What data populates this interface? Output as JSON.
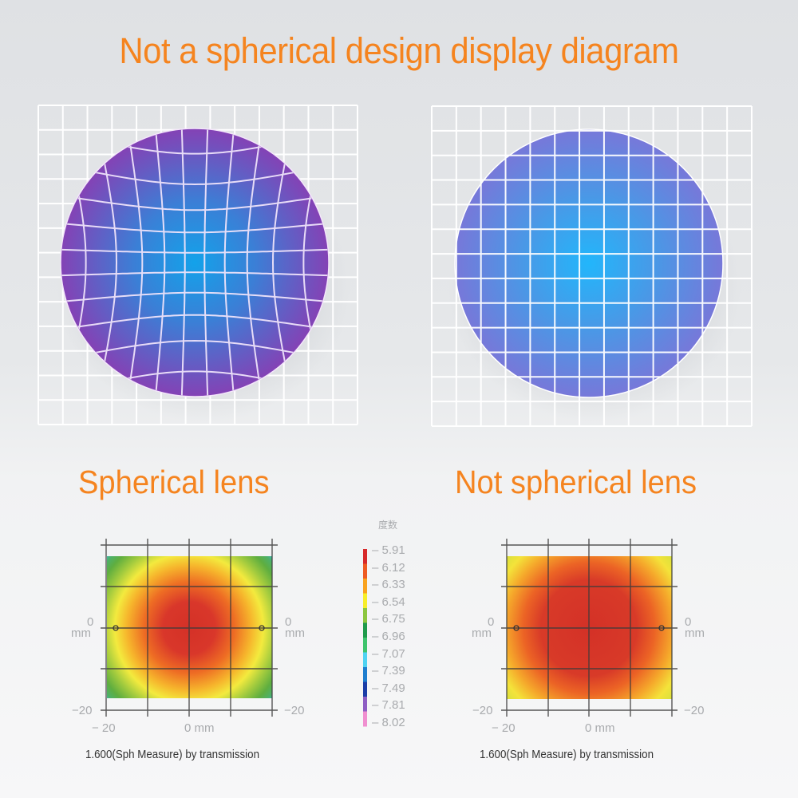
{
  "title": "Not a spherical design display diagram",
  "panels": [
    {
      "id": "spherical",
      "caption": "Spherical lens",
      "lens_colors": {
        "center": "#13a2ea",
        "mid": "#3b7fd6",
        "edge": "#8442b5"
      },
      "grid_distortion": "pincushion",
      "heatmap_caption": "1.600(Sph Measure) by transmission"
    },
    {
      "id": "aspherical",
      "caption": "Not spherical lens",
      "lens_colors": {
        "center": "#22b6fb",
        "mid": "#4a98e6",
        "edge": "#7778d9"
      },
      "grid_distortion": "none",
      "heatmap_caption": "1.600(Sph Measure) by transmission"
    }
  ],
  "heatmap_axes": {
    "y_top_label_value": "0",
    "y_top_label_unit": "mm",
    "y_bottom_label": "−20",
    "x_left_label": "− 20",
    "x_center_label": "0 mm"
  },
  "legend": {
    "title": "度数",
    "entries": [
      {
        "value": "5.91",
        "color": "#d7292a"
      },
      {
        "value": "6.12",
        "color": "#ee5a22"
      },
      {
        "value": "6.33",
        "color": "#f9a31f"
      },
      {
        "value": "6.54",
        "color": "#f7ee2a"
      },
      {
        "value": "6.75",
        "color": "#8cc63f"
      },
      {
        "value": "6.96",
        "color": "#1f9a4b"
      },
      {
        "value": "7.07",
        "color": "#3ec46d"
      },
      {
        "value": "7.39",
        "color": "#4fd3f2"
      },
      {
        "value": "7.49",
        "color": "#1f7ecf"
      },
      {
        "value": "7.81",
        "color": "#1c3ea8"
      },
      {
        "value": "8.02",
        "color": "#8e5ec4"
      },
      {
        "value": "",
        "color": "#f08fd0"
      }
    ]
  },
  "chart_data": [
    {
      "type": "heatmap",
      "title": "Spherical lens - 1.600(Sph Measure) by transmission",
      "xlabel": "mm",
      "ylabel": "mm",
      "x_ticks": [
        "-20",
        "0 mm"
      ],
      "y_ticks": [
        "0 mm",
        "-20"
      ],
      "colorbar_title": "度数",
      "colorbar_ticks": [
        5.91,
        6.12,
        6.33,
        6.54,
        6.75,
        6.96,
        7.07,
        7.39,
        7.49,
        7.81,
        8.02
      ],
      "description": "Concentric rings: red center (~5.91-6.12) → orange → yellow (~6.54) → green (~6.75-6.96) → blue corners (~7.39-7.49)",
      "center_value": 5.91,
      "corner_value": 7.49
    },
    {
      "type": "heatmap",
      "title": "Not spherical lens - 1.600(Sph Measure) by transmission",
      "xlabel": "mm",
      "ylabel": "mm",
      "x_ticks": [
        "-20",
        "0 mm"
      ],
      "y_ticks": [
        "0 mm",
        "-20"
      ],
      "colorbar_title": "度数",
      "colorbar_ticks": [
        5.91,
        6.12,
        6.33,
        6.54,
        6.75,
        6.96,
        7.07,
        7.39,
        7.49,
        7.81,
        8.02
      ],
      "description": "Broad red center (~5.91-6.12) → orange → yellow edges (~6.54) → green only at corners (~6.75)",
      "center_value": 5.91,
      "corner_value": 6.75
    }
  ]
}
